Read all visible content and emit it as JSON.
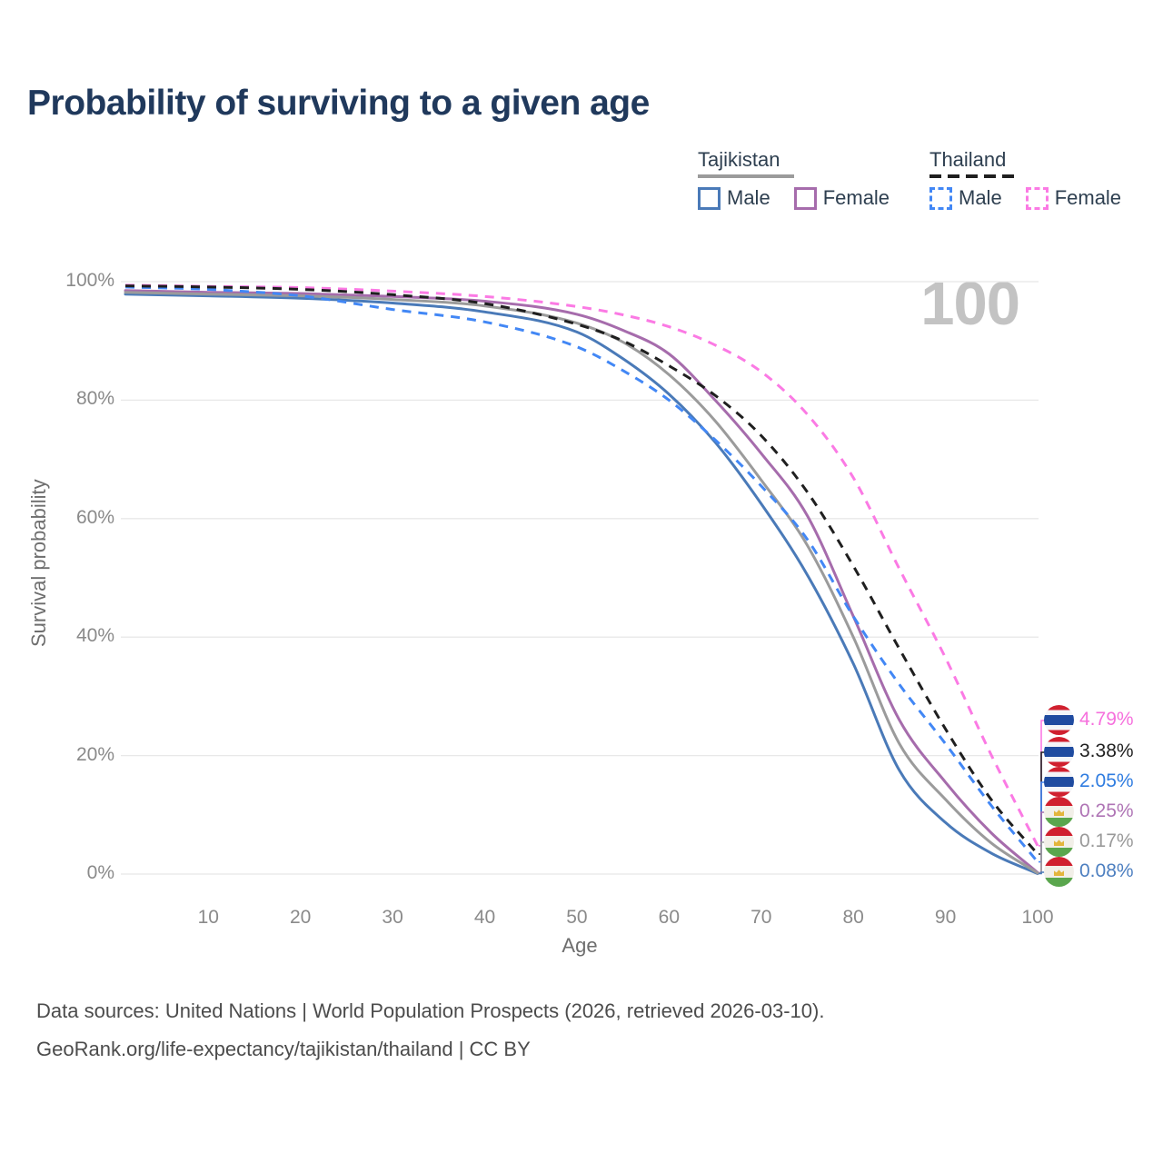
{
  "title": "Probability of surviving to a given age",
  "watermark_age": "100",
  "legend": {
    "groups": [
      {
        "name": "Tajikistan",
        "line_style": "solid",
        "line_color": "#9b9b9b",
        "items": [
          {
            "label": "Male",
            "color": "#4a7ab8",
            "dashed": false
          },
          {
            "label": "Female",
            "color": "#a66cac",
            "dashed": false
          }
        ]
      },
      {
        "name": "Thailand",
        "line_style": "dashed",
        "line_color": "#1f1f1f",
        "items": [
          {
            "label": "Male",
            "color": "#4287f5",
            "dashed": true
          },
          {
            "label": "Female",
            "color": "#fb7ae4",
            "dashed": true
          }
        ]
      }
    ]
  },
  "chart_data": {
    "type": "line",
    "title": "Probability of surviving to a given age",
    "xlabel": "Age",
    "ylabel": "Survival probability",
    "xlim": [
      1,
      100
    ],
    "ylim": [
      0,
      100
    ],
    "grid": "horizontal",
    "legend_position": "top-right",
    "x_ticks": [
      10,
      20,
      30,
      40,
      50,
      60,
      70,
      80,
      90,
      100
    ],
    "y_ticks": [
      {
        "value": 0,
        "label": "0%"
      },
      {
        "value": 20,
        "label": "20%"
      },
      {
        "value": 40,
        "label": "40%"
      },
      {
        "value": 60,
        "label": "60%"
      },
      {
        "value": 80,
        "label": "80%"
      },
      {
        "value": 100,
        "label": "100%"
      }
    ],
    "x": [
      1,
      10,
      20,
      30,
      40,
      50,
      55,
      60,
      65,
      70,
      75,
      80,
      85,
      90,
      95,
      100
    ],
    "series": [
      {
        "name": "Tajikistan Male",
        "country": "Tajikistan",
        "sex": "Male",
        "color": "#4a7ab8",
        "dashed": false,
        "flag": "tajikistan",
        "end_label": "0.08%",
        "end_label_color": "#4d7fc0",
        "values": [
          97.9,
          97.6,
          97.2,
          96.4,
          94.9,
          91.5,
          87.0,
          81.0,
          72.9,
          62.5,
          50.5,
          35.5,
          17.5,
          8.7,
          3.5,
          0.08
        ]
      },
      {
        "name": "Tajikistan Female",
        "country": "Tajikistan",
        "sex": "Female",
        "color": "#a66cac",
        "dashed": false,
        "flag": "tajikistan",
        "end_label": "0.25%",
        "end_label_color": "#af74b5",
        "values": [
          98.5,
          98.2,
          98.0,
          97.5,
          96.7,
          94.5,
          91.8,
          87.8,
          80.0,
          71.0,
          60.5,
          43.5,
          26.0,
          15.5,
          6.9,
          0.25
        ]
      },
      {
        "name": "Tajikistan Both sexes",
        "country": "Tajikistan",
        "sex": "Both",
        "color": "#9b9b9b",
        "dashed": false,
        "flag": "tajikistan",
        "end_label": "0.17%",
        "end_label_color": "#9a9a9a",
        "values": [
          98.2,
          97.9,
          97.6,
          97.0,
          95.9,
          93.0,
          89.8,
          84.3,
          76.5,
          66.5,
          55.5,
          40.0,
          22.0,
          12.6,
          5.2,
          0.17
        ]
      },
      {
        "name": "Thailand Male",
        "country": "Thailand",
        "sex": "Male",
        "color": "#4287f5",
        "dashed": true,
        "flag": "thailand",
        "end_label": "2.05%",
        "end_label_color": "#2f7ce0",
        "values": [
          99.1,
          98.7,
          97.6,
          95.3,
          93.2,
          89.0,
          85.0,
          80.0,
          73.3,
          65.5,
          56.5,
          43.5,
          32.0,
          22.0,
          11.5,
          2.05
        ]
      },
      {
        "name": "Thailand Female",
        "country": "Thailand",
        "sex": "Female",
        "color": "#fb7ae4",
        "dashed": true,
        "flag": "thailand",
        "end_label": "4.79%",
        "end_label_color": "#f670dd",
        "values": [
          99.4,
          99.2,
          99.0,
          98.4,
          97.5,
          95.8,
          94.4,
          92.4,
          89.3,
          84.8,
          77.6,
          66.9,
          51.5,
          36.5,
          20.0,
          4.79
        ]
      },
      {
        "name": "Thailand Both sexes",
        "country": "Thailand",
        "sex": "Both",
        "color": "#1f1f1f",
        "dashed": true,
        "flag": "thailand",
        "end_label": "3.38%",
        "end_label_color": "#1f1f1f",
        "values": [
          99.3,
          99.1,
          98.7,
          97.8,
          96.3,
          92.8,
          90.0,
          85.8,
          80.8,
          74.0,
          64.5,
          52.0,
          38.0,
          24.5,
          12.5,
          3.38
        ]
      }
    ]
  },
  "footer": {
    "line1": "Data sources: United Nations | World Population Prospects (2026, retrieved 2026-03-10).",
    "line2": "GeoRank.org/life-expectancy/tajikistan/thailand | CC BY"
  }
}
